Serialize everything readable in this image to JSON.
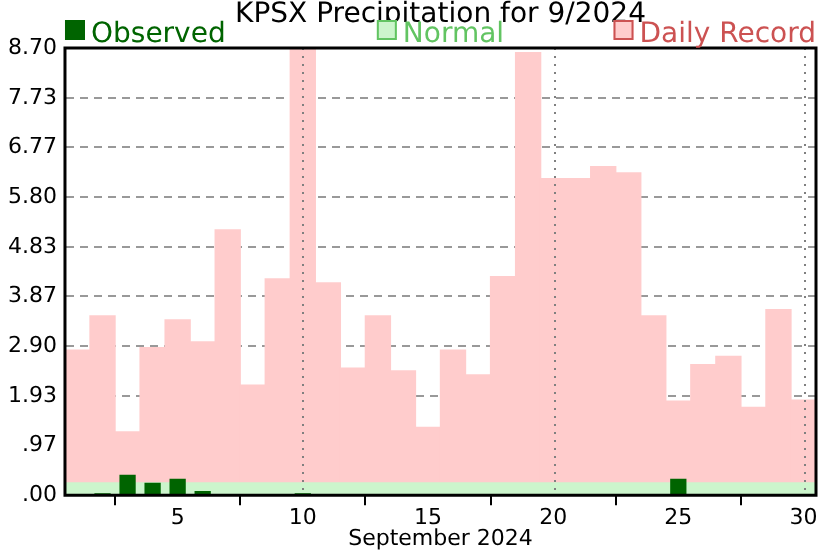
{
  "chart_data": {
    "type": "bar",
    "title": "KPSX Precipitation for 9/2024",
    "xlabel": "September 2024",
    "x": [
      1,
      2,
      3,
      4,
      5,
      6,
      7,
      8,
      9,
      10,
      11,
      12,
      13,
      14,
      15,
      16,
      17,
      18,
      19,
      20,
      21,
      22,
      23,
      24,
      25,
      26,
      27,
      28,
      29,
      30
    ],
    "series": [
      {
        "name": "Observed",
        "color": "#006400",
        "values": [
          0,
          0.04,
          0.4,
          0.24,
          0.32,
          0.08,
          0,
          0,
          0,
          0.04,
          0,
          0,
          0,
          0,
          0,
          0,
          0,
          0,
          0,
          0,
          0,
          0,
          0,
          0,
          0.32,
          0,
          0,
          0,
          0,
          0
        ]
      },
      {
        "name": "Daily Record",
        "color": "#ffcccc",
        "values": [
          2.82,
          3.49,
          1.23,
          2.87,
          3.41,
          2.98,
          5.16,
          2.14,
          4.21,
          8.7,
          4.13,
          2.47,
          3.49,
          2.42,
          1.32,
          2.82,
          2.34,
          4.25,
          8.61,
          6.16,
          6.16,
          6.39,
          6.27,
          3.49,
          1.83,
          2.54,
          2.7,
          1.71,
          3.61,
          1.85
        ]
      }
    ],
    "bands": [
      {
        "axis": "y",
        "from": 0,
        "to": 0.25,
        "label": "Normal",
        "color": "#ccf5cc"
      }
    ],
    "xlim": [
      0.5,
      30.5
    ],
    "xticks": [
      5,
      10,
      15,
      20,
      25,
      30
    ],
    "ylim": [
      0,
      8.7
    ],
    "yticks": [
      {
        "value": 0,
        "label": ".00"
      },
      {
        "value": 0.97,
        "label": ".97"
      },
      {
        "value": 1.93,
        "label": "1.93"
      },
      {
        "value": 2.9,
        "label": "2.90"
      },
      {
        "value": 3.87,
        "label": "3.87"
      },
      {
        "value": 4.83,
        "label": "4.83"
      },
      {
        "value": 5.8,
        "label": "5.80"
      },
      {
        "value": 6.77,
        "label": "6.77"
      },
      {
        "value": 7.73,
        "label": "7.73"
      },
      {
        "value": 8.7,
        "label": "8.70"
      }
    ],
    "ref_lines": [
      {
        "axis": "x",
        "value": 10,
        "line_style": "dotted",
        "color": "#808080"
      },
      {
        "axis": "x",
        "value": 20,
        "line_style": "dotted",
        "color": "#808080"
      },
      {
        "axis": "x",
        "value": 30,
        "line_style": "dotted",
        "color": "#808080"
      }
    ],
    "grid": "y",
    "legend": "top"
  }
}
